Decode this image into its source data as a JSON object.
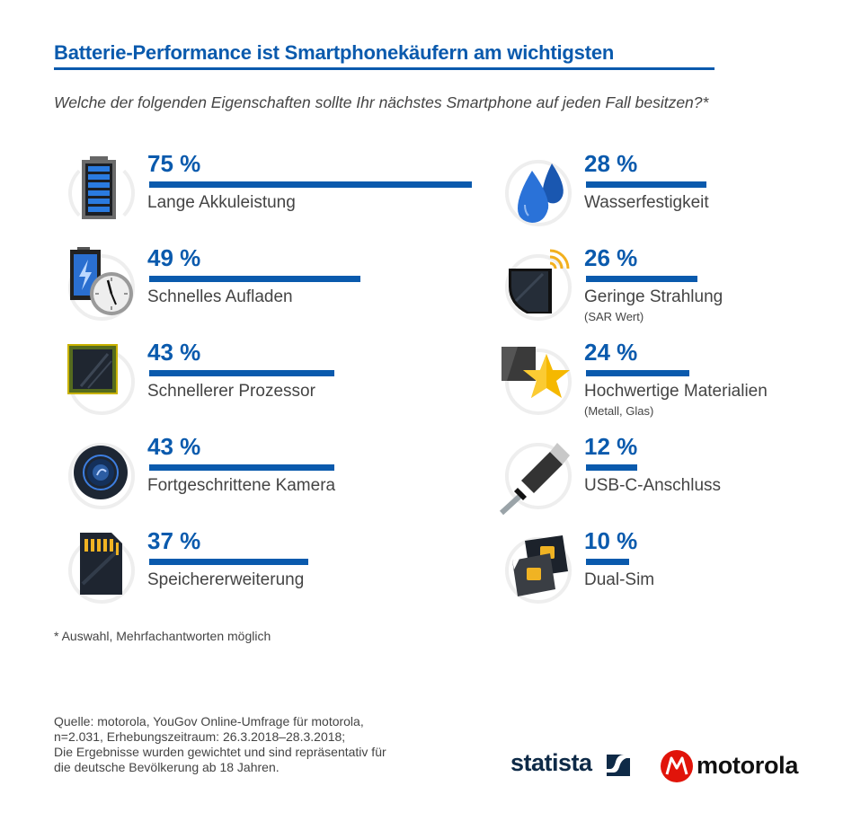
{
  "header": {
    "title": "Batterie-Performance ist Smartphonekäufern am wichtigsten",
    "subtitle": "Welche der folgenden Eigenschaften sollte Ihr nächstes Smartphone auf jeden Fall besitzen?*"
  },
  "chart_data": {
    "type": "bar",
    "title": "Batterie-Performance ist Smartphonekäufern am wichtigsten",
    "subtitle": "Welche der folgenden Eigenschaften sollte Ihr nächstes Smartphone auf jeden Fall besitzen?*",
    "unit": "%",
    "xlim": [
      0,
      100
    ],
    "accent_color": "#0a5aad",
    "items": [
      {
        "label": "Lange Akkuleistung",
        "sublabel": "",
        "value": 75,
        "value_label": "75 %",
        "icon": "battery-icon"
      },
      {
        "label": "Schnelles Aufladen",
        "sublabel": "",
        "value": 49,
        "value_label": "49 %",
        "icon": "fast-charge-icon"
      },
      {
        "label": "Schnellerer Prozessor",
        "sublabel": "",
        "value": 43,
        "value_label": "43 %",
        "icon": "processor-chip-icon"
      },
      {
        "label": "Fortgeschrittene Kamera",
        "sublabel": "",
        "value": 43,
        "value_label": "43 %",
        "icon": "camera-lens-icon"
      },
      {
        "label": "Speichererweiterung",
        "sublabel": "",
        "value": 37,
        "value_label": "37 %",
        "icon": "sd-card-icon"
      },
      {
        "label": "Wasserfestigkeit",
        "sublabel": "",
        "value": 28,
        "value_label": "28 %",
        "icon": "water-drops-icon"
      },
      {
        "label": "Geringe Strahlung",
        "sublabel": "(SAR Wert)",
        "value": 26,
        "value_label": "26 %",
        "icon": "radiation-phone-icon"
      },
      {
        "label": "Hochwertige Materialien",
        "sublabel": "(Metall, Glas)",
        "value": 24,
        "value_label": "24 %",
        "icon": "materials-star-icon"
      },
      {
        "label": "USB-C-Anschluss",
        "sublabel": "",
        "value": 12,
        "value_label": "12 %",
        "icon": "usb-c-cable-icon"
      },
      {
        "label": "Dual-Sim",
        "sublabel": "",
        "value": 10,
        "value_label": "10 %",
        "icon": "dual-sim-icon"
      }
    ]
  },
  "footer": {
    "note": "* Auswahl, Mehrfachantworten möglich",
    "source_lines": [
      "Quelle: motorola, YouGov Online-Umfrage für motorola,",
      "n=2.031, Erhebungszeitraum: 26.3.2018–28.3.2018;",
      "Die Ergebnisse wurden gewichtet und sind repräsentativ für",
      "die deutsche Bevölkerung ab 18 Jahren."
    ],
    "statista_logo": "statista",
    "motorola_logo": "motorola",
    "motorola_color": "#e1140a"
  }
}
